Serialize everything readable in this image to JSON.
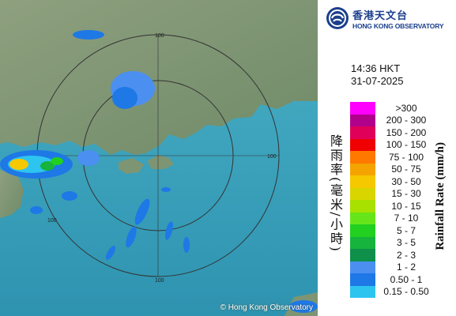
{
  "panel": {
    "logo_zh": "香港天文台",
    "logo_en": "HONG KONG OBSERVATORY",
    "time": "14:36 HKT",
    "date": "31-07-2025",
    "axis_title_zh": "降雨率(毫米/小時)",
    "axis_title_en": "Rainfall Rate (mm/h)",
    "legend": [
      {
        "label": ">300",
        "color": "#ff00ff"
      },
      {
        "label": "200 - 300",
        "color": "#b0008c"
      },
      {
        "label": "150 - 200",
        "color": "#e0005a"
      },
      {
        "label": "100 - 150",
        "color": "#f00000"
      },
      {
        "label": "75 - 100",
        "color": "#ff7800"
      },
      {
        "label": "50 - 75",
        "color": "#f5a300"
      },
      {
        "label": "30 - 50",
        "color": "#f5c800"
      },
      {
        "label": "15 - 30",
        "color": "#d9d500"
      },
      {
        "label": "10 - 15",
        "color": "#a8e000"
      },
      {
        "label": "7 - 10",
        "color": "#66e61a"
      },
      {
        "label": "5 - 7",
        "color": "#22d020"
      },
      {
        "label": "3 - 5",
        "color": "#16b43c"
      },
      {
        "label": "2 - 3",
        "color": "#0e8f4a"
      },
      {
        "label": "1 - 2",
        "color": "#4b8ff0"
      },
      {
        "label": "0.50 - 1",
        "color": "#1e78e6"
      },
      {
        "label": "0.15 - 0.50",
        "color": "#2ec4f0"
      }
    ]
  },
  "map": {
    "copyright": "© Hong Kong Observatory",
    "range_labels": [
      "100",
      "100",
      "100",
      "100"
    ]
  }
}
